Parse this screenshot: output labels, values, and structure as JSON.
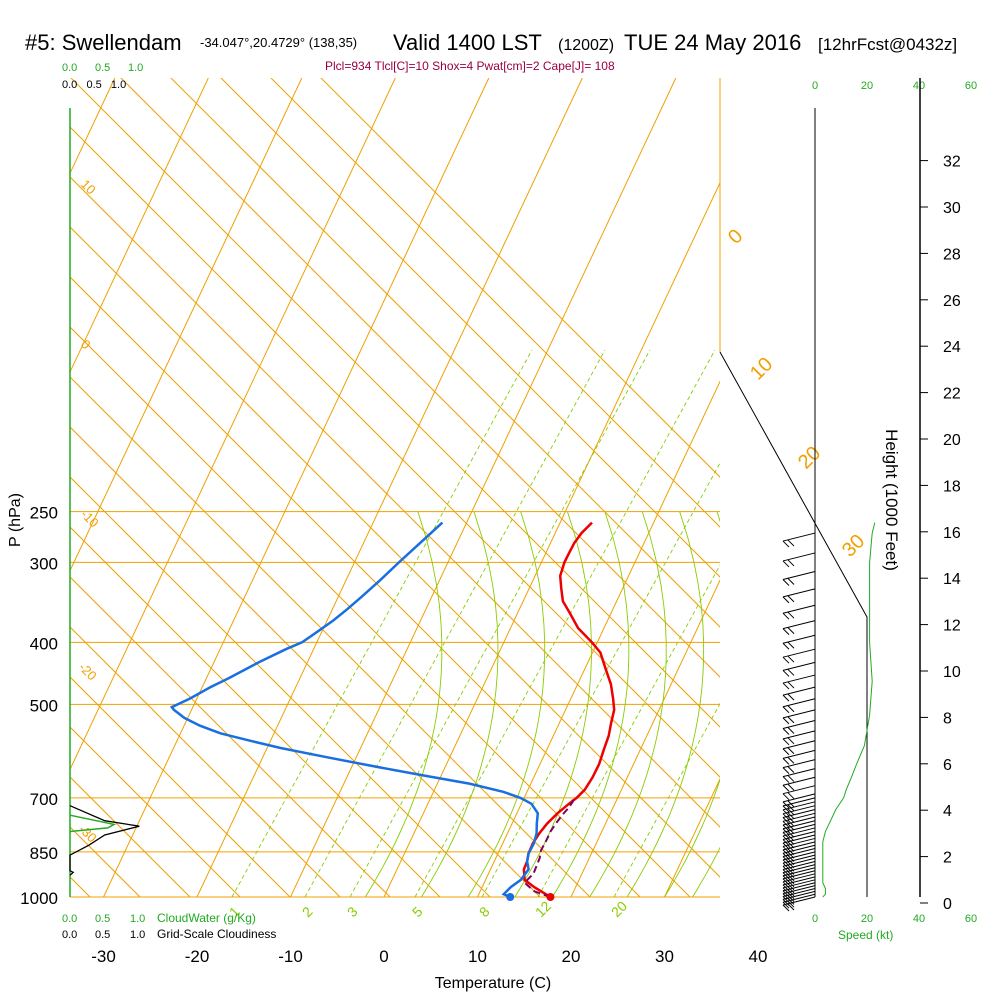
{
  "title": {
    "station": "#5: Swellendam",
    "coords": "-34.047°,20.4729° (138,35)",
    "valid": "Valid 1400 LST",
    "utc": "(1200Z)",
    "date": "TUE 24 May 2016",
    "fcst": "[12hrFcst@0432z]"
  },
  "indices": "Plcl=934 Tlcl[C]=10 Shox=4 Pwat[cm]=2 Cape[J]= 108",
  "colors": {
    "isotherm": "#f0a000",
    "dry_adiabat": "#f0a000",
    "moist_adiabat": "#88cc00",
    "mixing_ratio": "#88cc00",
    "temperature": "#ee0000",
    "dewpoint": "#1a6fe0",
    "parcel": "#800060",
    "cloudwater": "#22aa22",
    "cloudiness": "#000000",
    "wind_speed": "#22aa22",
    "indices_text": "#990044"
  },
  "chart_data": {
    "type": "line",
    "xlabel": "Temperature (C)",
    "ylabel": "P (hPa)",
    "y2label": "Height (1000 Feet)",
    "xlim": [
      -34,
      45
    ],
    "ylim": [
      1000,
      250
    ],
    "x_ticks": [
      "-30",
      "-20",
      "-10",
      "0",
      "10",
      "20",
      "30",
      "40"
    ],
    "pressure_ticks": [
      "250",
      "300",
      "400",
      "500",
      "700",
      "850",
      "1000"
    ],
    "height_ticks": [
      "0",
      "2",
      "4",
      "6",
      "8",
      "10",
      "12",
      "14",
      "16",
      "18",
      "20",
      "22",
      "24",
      "26",
      "28",
      "30",
      "32"
    ],
    "dry_adiabat_labels": [
      "-30",
      "-20",
      "-10",
      "0",
      "10",
      "20",
      "30"
    ],
    "mixing_ratio_labels": [
      "1",
      "2",
      "3",
      "5",
      "8",
      "12",
      "20"
    ],
    "series": [
      {
        "key": "temperature",
        "points": [
          [
            17.8,
            1000
          ],
          [
            15,
            965
          ],
          [
            13.2,
            940
          ],
          [
            12,
            905
          ],
          [
            11.5,
            880
          ],
          [
            10.8,
            855
          ],
          [
            10.2,
            825
          ],
          [
            9.8,
            795
          ],
          [
            9.6,
            768
          ],
          [
            9.6,
            740
          ],
          [
            9.8,
            715
          ],
          [
            10,
            700
          ],
          [
            10,
            680
          ],
          [
            9.5,
            650
          ],
          [
            8.8,
            620
          ],
          [
            7.8,
            590
          ],
          [
            6.8,
            560
          ],
          [
            5.7,
            535
          ],
          [
            4.6,
            510
          ],
          [
            3.3,
            490
          ],
          [
            1.5,
            465
          ],
          [
            -0.7,
            440
          ],
          [
            -3,
            415
          ],
          [
            -5,
            400
          ],
          [
            -8,
            380
          ],
          [
            -10.5,
            360
          ],
          [
            -12.5,
            345
          ],
          [
            -14,
            330
          ],
          [
            -15.5,
            315
          ],
          [
            -16.5,
            300
          ],
          [
            -17,
            290
          ],
          [
            -17.5,
            280
          ],
          [
            -17.8,
            270
          ],
          [
            -17.8,
            260
          ]
        ]
      },
      {
        "key": "dewpoint",
        "points": [
          [
            13.5,
            1000
          ],
          [
            12.5,
            990
          ],
          [
            12.5,
            965
          ],
          [
            12.8,
            940
          ],
          [
            12.5,
            905
          ],
          [
            11.5,
            880
          ],
          [
            10.8,
            855
          ],
          [
            10.3,
            825
          ],
          [
            9.5,
            795
          ],
          [
            8.5,
            768
          ],
          [
            7.5,
            740
          ],
          [
            5.8,
            715
          ],
          [
            4,
            700
          ],
          [
            1.5,
            685
          ],
          [
            -3,
            665
          ],
          [
            -9,
            645
          ],
          [
            -15,
            625
          ],
          [
            -21,
            605
          ],
          [
            -27,
            585
          ],
          [
            -31,
            570
          ],
          [
            -35,
            555
          ],
          [
            -38,
            540
          ],
          [
            -40.5,
            525
          ],
          [
            -42.5,
            510
          ],
          [
            -43,
            505
          ],
          [
            -42,
            490
          ],
          [
            -41,
            470
          ],
          [
            -40,
            455
          ],
          [
            -38.5,
            430
          ],
          [
            -37,
            410
          ],
          [
            -36,
            400
          ],
          [
            -35.5,
            385
          ],
          [
            -35,
            370
          ],
          [
            -34.7,
            355
          ],
          [
            -34.5,
            340
          ],
          [
            -34.3,
            320
          ],
          [
            -34.2,
            300
          ],
          [
            -34,
            280
          ],
          [
            -33.8,
            260
          ]
        ]
      },
      {
        "key": "parcel",
        "points": [
          [
            17.8,
            1000
          ],
          [
            15.5,
            980
          ],
          [
            13.5,
            950
          ],
          [
            13.5,
            920
          ],
          [
            13,
            895
          ],
          [
            12.5,
            870
          ],
          [
            11.8,
            845
          ],
          [
            11.3,
            815
          ],
          [
            10.8,
            790
          ],
          [
            10.5,
            765
          ],
          [
            10.3,
            745
          ],
          [
            10.2,
            725
          ],
          [
            10,
            710
          ],
          [
            9.6,
            700
          ]
        ]
      }
    ],
    "wind_barb_pressures": [
      270,
      290,
      310,
      330,
      350,
      370,
      390,
      410,
      430,
      450,
      470,
      490,
      510,
      530,
      550,
      570,
      590,
      610,
      630,
      650,
      670,
      690,
      700,
      710,
      720,
      730,
      740,
      750,
      760,
      770,
      780,
      790,
      800,
      810,
      820,
      830,
      840,
      850,
      860,
      870,
      880,
      890,
      900,
      910,
      920,
      930,
      940,
      950,
      960,
      970,
      980,
      990,
      1000
    ],
    "wind_speed_axis": {
      "label": "Speed (kt)",
      "ticks": [
        "0",
        "20",
        "40",
        "60"
      ],
      "profile": [
        [
          3,
          1000
        ],
        [
          4,
          990
        ],
        [
          4,
          970
        ],
        [
          3,
          950
        ],
        [
          3,
          900
        ],
        [
          3,
          860
        ],
        [
          3,
          820
        ],
        [
          4,
          790
        ],
        [
          6,
          760
        ],
        [
          8,
          730
        ],
        [
          11,
          700
        ],
        [
          12,
          680
        ],
        [
          14,
          650
        ],
        [
          16,
          620
        ],
        [
          19,
          580
        ],
        [
          21,
          520
        ],
        [
          22,
          460
        ],
        [
          21,
          400
        ],
        [
          21,
          350
        ],
        [
          21,
          300
        ],
        [
          22,
          270
        ],
        [
          23,
          260
        ]
      ]
    },
    "cloud_panel": {
      "cloudwater_label": "CloudWater (g/Kg)",
      "cloudiness_label": "Grid-Scale Cloudiness",
      "top_ticks_green": [
        "0.0",
        "0.5",
        "1.0"
      ],
      "top_ticks_black": "0.0   0.5   1.0",
      "bottom_ticks_green": [
        "0.0",
        "0.5",
        "1.0"
      ],
      "bottom_ticks_black": [
        "0.0",
        "0.5",
        "1.0"
      ],
      "cloudiness_profile": [
        [
          0,
          720
        ],
        [
          0.55,
          760
        ],
        [
          1.1,
          775
        ],
        [
          0.55,
          800
        ],
        [
          0.3,
          830
        ],
        [
          0,
          860
        ],
        [
          0,
          910
        ],
        [
          0.05,
          915
        ],
        [
          0,
          925
        ]
      ],
      "cloudwater_profile": [
        [
          0,
          745
        ],
        [
          0.7,
          770
        ],
        [
          0.6,
          780
        ],
        [
          0,
          790
        ]
      ]
    }
  }
}
